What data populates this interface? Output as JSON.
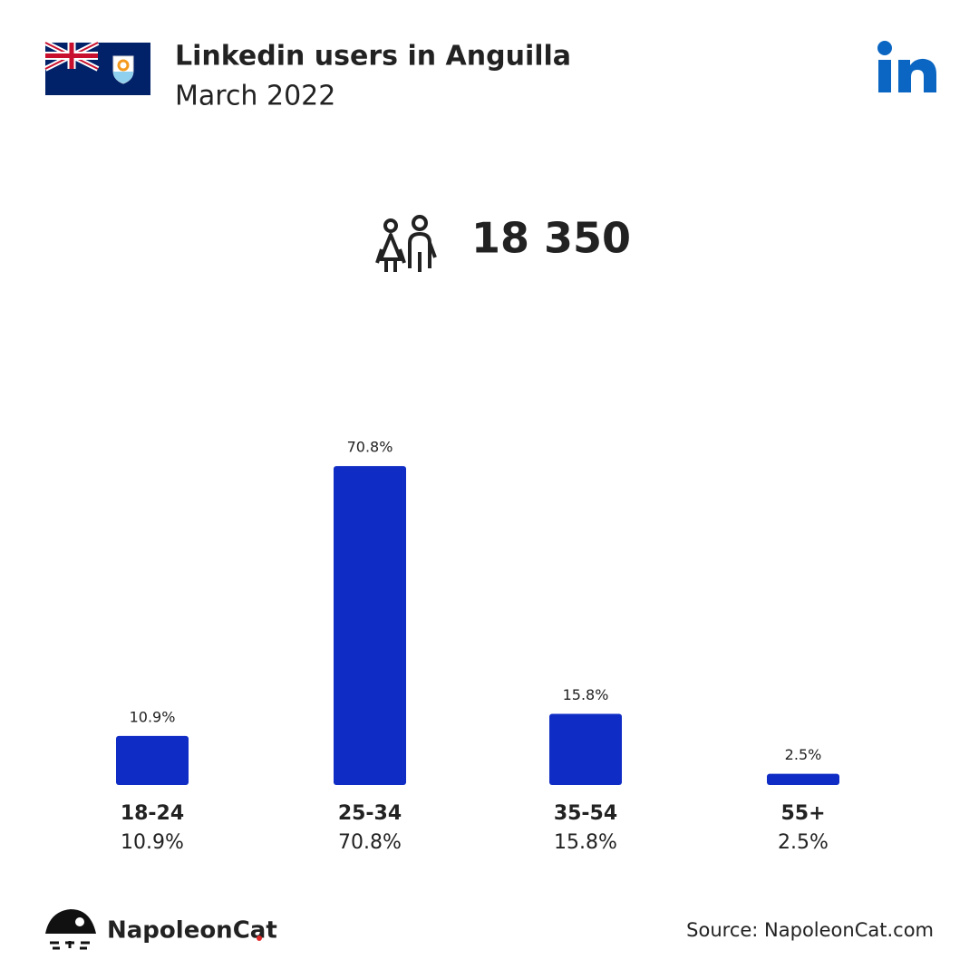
{
  "chart_data": {
    "type": "bar",
    "title": "Linkedin users in Anguilla",
    "subtitle": "March 2022",
    "total_users": "18 350",
    "categories": [
      "18-24",
      "25-34",
      "35-54",
      "55+"
    ],
    "values": [
      10.9,
      70.8,
      15.8,
      2.5
    ],
    "value_labels": [
      "10.9%",
      "70.8%",
      "15.8%",
      "2.5%"
    ],
    "color": "#0f2cc4",
    "brand": "NapoleonCat",
    "source": "Source: NapoleonCat.com"
  }
}
